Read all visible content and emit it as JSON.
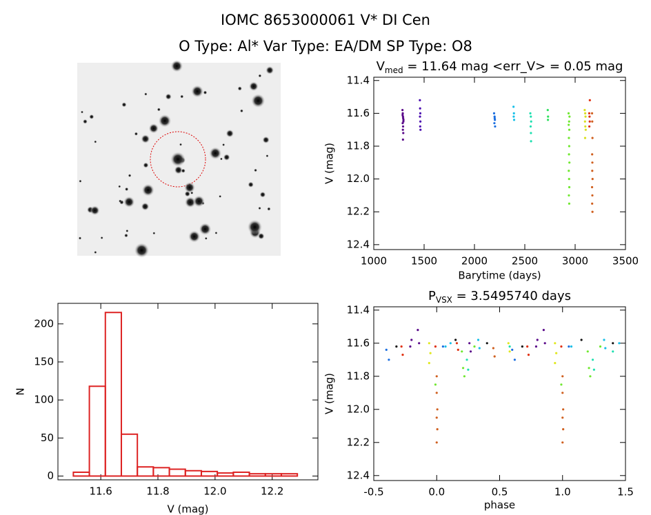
{
  "header": {
    "title": "IOMC 8653000061   V* DI Cen",
    "subtitle": "O Type: Al*  Var Type: EA/DM  SP Type: O8"
  },
  "chart_data": [
    {
      "type": "scatter",
      "title": "V",
      "title_sub": "med",
      "title_rest": " = 11.64 mag <err_V> = 0.05 mag",
      "x_label": "Barytime (days)",
      "y_label": "V (mag)",
      "xlim": [
        1000,
        3500
      ],
      "xticks": [
        1000,
        1500,
        2000,
        2500,
        3000,
        3500
      ],
      "ylim": [
        11.38,
        12.43
      ],
      "y_reversed": true,
      "yticks": [
        11.4,
        11.6,
        11.8,
        {
          "value": 12.0,
          "label": "12.0"
        },
        12.2,
        12.4
      ],
      "series": [
        {
          "color": "#5a0a8a",
          "x": [
            1285,
            1288,
            1290,
            1292,
            1294,
            1287,
            1291,
            1289,
            1293,
            1290,
            1295,
            1286
          ],
          "values": [
            11.58,
            11.6,
            11.62,
            11.63,
            11.65,
            11.66,
            11.68,
            11.7,
            11.72,
            11.76,
            11.64,
            11.61
          ]
        },
        {
          "color": "#4b0eb0",
          "x": [
            1458,
            1460,
            1462,
            1459,
            1463,
            1461,
            1464
          ],
          "values": [
            11.52,
            11.57,
            11.6,
            11.62,
            11.65,
            11.68,
            11.7
          ]
        },
        {
          "color": "#1a6ee0",
          "x": [
            2195,
            2200,
            2203,
            2198,
            2205,
            2201
          ],
          "values": [
            11.6,
            11.62,
            11.64,
            11.66,
            11.68,
            11.63
          ]
        },
        {
          "color": "#18c0e8",
          "x": [
            2388,
            2392,
            2390,
            2394
          ],
          "values": [
            11.56,
            11.6,
            11.62,
            11.64
          ]
        },
        {
          "color": "#1ee0b0",
          "x": [
            2555,
            2560,
            2563,
            2558,
            2561,
            2562
          ],
          "values": [
            11.6,
            11.62,
            11.65,
            11.68,
            11.72,
            11.77
          ]
        },
        {
          "color": "#30e060",
          "x": [
            2728,
            2731,
            2730
          ],
          "values": [
            11.58,
            11.62,
            11.64
          ]
        },
        {
          "color": "#70e830",
          "x": [
            2935,
            2940,
            2942,
            2938,
            2941,
            2939,
            2943,
            2937,
            2940,
            2942,
            2938,
            2941,
            2944,
            2936
          ],
          "values": [
            11.6,
            11.65,
            11.7,
            11.75,
            11.8,
            11.85,
            11.9,
            11.95,
            12.0,
            12.05,
            12.1,
            12.15,
            11.62,
            11.67
          ]
        },
        {
          "color": "#d8e020",
          "x": [
            3095,
            3100,
            3103,
            3098,
            3105,
            3101,
            3099
          ],
          "values": [
            11.58,
            11.6,
            11.62,
            11.65,
            11.7,
            11.68,
            11.75
          ]
        },
        {
          "color": "#e03010",
          "x": [
            3140,
            3143,
            3145,
            3141,
            3146
          ],
          "values": [
            11.6,
            11.62,
            11.65,
            11.68,
            11.52
          ]
        },
        {
          "color": "#d06020",
          "x": [
            3168,
            3170,
            3172,
            3169,
            3171,
            3170,
            3173,
            3168,
            3171,
            3169,
            3172
          ],
          "values": [
            11.6,
            11.65,
            11.75,
            11.85,
            11.9,
            11.95,
            12.0,
            12.05,
            12.1,
            12.15,
            12.2
          ]
        }
      ]
    },
    {
      "type": "histogram",
      "x_label": "V (mag)",
      "y_label": "N",
      "color": "#dd2222",
      "xlim": [
        11.45,
        12.36
      ],
      "xticks": [
        11.6,
        11.8,
        {
          "value": 12.0,
          "label": "12.0"
        },
        12.2
      ],
      "ylim": [
        -5,
        227
      ],
      "yticks": [
        0,
        50,
        100,
        150,
        200
      ],
      "bins": [
        11.504,
        11.56,
        11.616,
        11.672,
        11.728,
        11.784,
        11.84,
        11.896,
        11.952,
        12.008,
        12.064,
        12.12,
        12.176,
        12.232,
        12.288
      ],
      "values": [
        5,
        118,
        215,
        55,
        12,
        11,
        9,
        7,
        6,
        4,
        5,
        3,
        3,
        3
      ]
    },
    {
      "type": "scatter",
      "title": "P",
      "title_sub": "VSX",
      "title_rest": " = 3.5495740 days",
      "x_label": "phase",
      "y_label": "V (mag)",
      "xlim": [
        -0.5,
        1.5
      ],
      "xticks": [
        -0.5,
        {
          "value": 0.0,
          "label": "0.0"
        },
        0.5,
        {
          "value": 1.0,
          "label": "1.0"
        },
        1.5
      ],
      "ylim": [
        11.38,
        12.43
      ],
      "y_reversed": true,
      "yticks": [
        11.4,
        11.6,
        11.8,
        {
          "value": 12.0,
          "label": "12.0"
        },
        12.2,
        12.4
      ],
      "series": [
        {
          "color": "#5a0a8a",
          "x": [
            -0.15,
            -0.14,
            -0.2,
            -0.21,
            0.85,
            0.86,
            0.8,
            0.79,
            0.26,
            0.27
          ],
          "values": [
            11.52,
            11.6,
            11.58,
            11.62,
            11.52,
            11.6,
            11.58,
            11.62,
            11.6,
            11.65
          ]
        },
        {
          "color": "#e03010",
          "x": [
            -0.28,
            -0.27,
            0.72,
            0.73,
            -0.01,
            0.99,
            0.16,
            0.17
          ],
          "values": [
            11.62,
            11.67,
            11.62,
            11.67,
            11.62,
            11.62,
            11.6,
            11.64
          ]
        },
        {
          "color": "#d06020",
          "x": [
            0.0,
            0.0,
            0.005,
            0.0,
            0.005,
            0.0,
            1.0,
            1.0,
            1.005,
            1.0,
            1.005,
            1.0,
            0.45,
            0.46
          ],
          "values": [
            11.8,
            11.9,
            12.0,
            12.05,
            12.12,
            12.2,
            11.8,
            11.9,
            12.0,
            12.05,
            12.12,
            12.2,
            11.63,
            11.68
          ]
        },
        {
          "color": "#70e830",
          "x": [
            -0.01,
            0.99,
            0.2,
            0.21,
            0.22,
            1.2,
            1.21,
            1.22,
            0.3,
            1.3
          ],
          "values": [
            11.85,
            11.85,
            11.65,
            11.75,
            11.8,
            11.65,
            11.75,
            11.8,
            11.62,
            11.62
          ]
        },
        {
          "color": "#e0e820",
          "x": [
            -0.06,
            -0.05,
            -0.06,
            0.94,
            0.95,
            0.94,
            0.57,
            0.58
          ],
          "values": [
            11.6,
            11.66,
            11.72,
            11.6,
            11.66,
            11.72,
            11.6,
            11.65
          ]
        },
        {
          "color": "#18c0e8",
          "x": [
            0.33,
            0.34,
            1.33,
            1.34,
            0.07,
            1.07,
            1.45,
            0.11
          ],
          "values": [
            11.58,
            11.63,
            11.58,
            11.63,
            11.62,
            11.62,
            11.6,
            11.6
          ]
        },
        {
          "color": "#1ee0b0",
          "x": [
            0.24,
            0.25,
            1.24,
            1.25,
            0.58,
            1.4
          ],
          "values": [
            11.7,
            11.76,
            11.7,
            11.76,
            11.62,
            11.65
          ]
        },
        {
          "color": "#1a6ee0",
          "x": [
            -0.4,
            -0.38,
            0.6,
            0.62,
            0.05,
            1.05
          ],
          "values": [
            11.64,
            11.7,
            11.64,
            11.7,
            11.62,
            11.62
          ]
        },
        {
          "color": "#111111",
          "x": [
            0.15,
            0.4,
            1.15,
            1.4,
            0.68,
            -0.32
          ],
          "values": [
            11.58,
            11.6,
            11.58,
            11.6,
            11.62,
            11.62
          ]
        }
      ]
    }
  ]
}
